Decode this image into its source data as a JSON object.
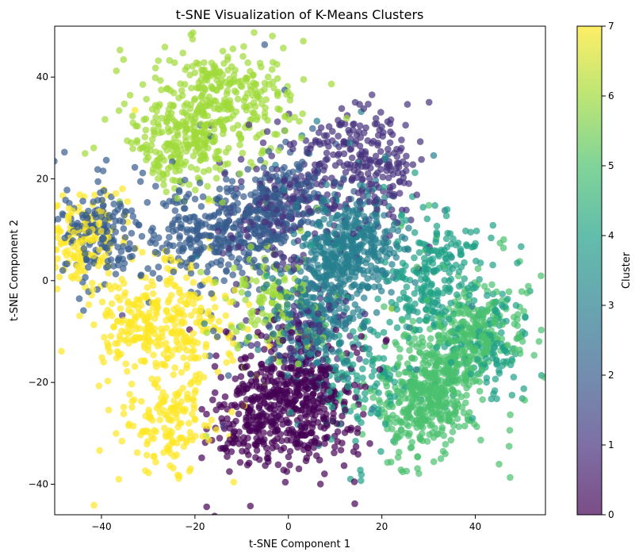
{
  "chart_data": {
    "type": "scatter",
    "title": "t-SNE Visualization of K-Means Clusters",
    "xlabel": "t-SNE Component 1",
    "ylabel": "t-SNE Component 2",
    "xlim": [
      -50,
      55
    ],
    "ylim": [
      -46,
      50
    ],
    "xticks": [
      -40,
      -20,
      0,
      20,
      40
    ],
    "yticks": [
      -40,
      -20,
      0,
      20,
      40
    ],
    "grid": false,
    "legend": "none",
    "marker_alpha": 0.7,
    "colormap": "viridis",
    "colormap_stops": [
      "#440154",
      "#46327e",
      "#365c8d",
      "#277f8e",
      "#1fa187",
      "#4ac16d",
      "#a0da39",
      "#fde725"
    ],
    "colorbar": {
      "label": "Cluster",
      "range": [
        0,
        7
      ],
      "ticks": [
        0,
        1,
        2,
        3,
        4,
        5,
        6,
        7
      ]
    },
    "clusters": [
      {
        "label": 0,
        "centers": [
          [
            -8,
            -28
          ],
          [
            4,
            -28
          ],
          [
            -3,
            -22
          ],
          [
            5,
            -20
          ]
        ],
        "approx_points": 600
      },
      {
        "label": 1,
        "centers": [
          [
            15,
            26
          ],
          [
            5,
            20
          ],
          [
            -5,
            12
          ],
          [
            20,
            20
          ],
          [
            3,
            -10
          ]
        ],
        "approx_points": 500
      },
      {
        "label": 2,
        "centers": [
          [
            -20,
            8
          ],
          [
            -8,
            10
          ],
          [
            -40,
            10
          ],
          [
            -2,
            16
          ]
        ],
        "approx_points": 700
      },
      {
        "label": 3,
        "centers": [
          [
            15,
            8
          ],
          [
            5,
            -8
          ],
          [
            10,
            4
          ]
        ],
        "approx_points": 700
      },
      {
        "label": 4,
        "centers": [
          [
            28,
            -3
          ],
          [
            32,
            4
          ],
          [
            43,
            -13
          ],
          [
            15,
            -20
          ]
        ],
        "approx_points": 450
      },
      {
        "label": 5,
        "centers": [
          [
            33,
            -18
          ],
          [
            40,
            -10
          ],
          [
            28,
            -25
          ]
        ],
        "approx_points": 750
      },
      {
        "label": 6,
        "centers": [
          [
            -8,
            35
          ],
          [
            -17,
            38
          ],
          [
            -25,
            28
          ],
          [
            -20,
            27
          ],
          [
            -3,
            -5
          ]
        ],
        "approx_points": 650
      },
      {
        "label": 7,
        "centers": [
          [
            -32,
            -8
          ],
          [
            -22,
            -8
          ],
          [
            -44,
            8
          ],
          [
            -26,
            -28
          ]
        ],
        "approx_points": 650
      }
    ]
  }
}
